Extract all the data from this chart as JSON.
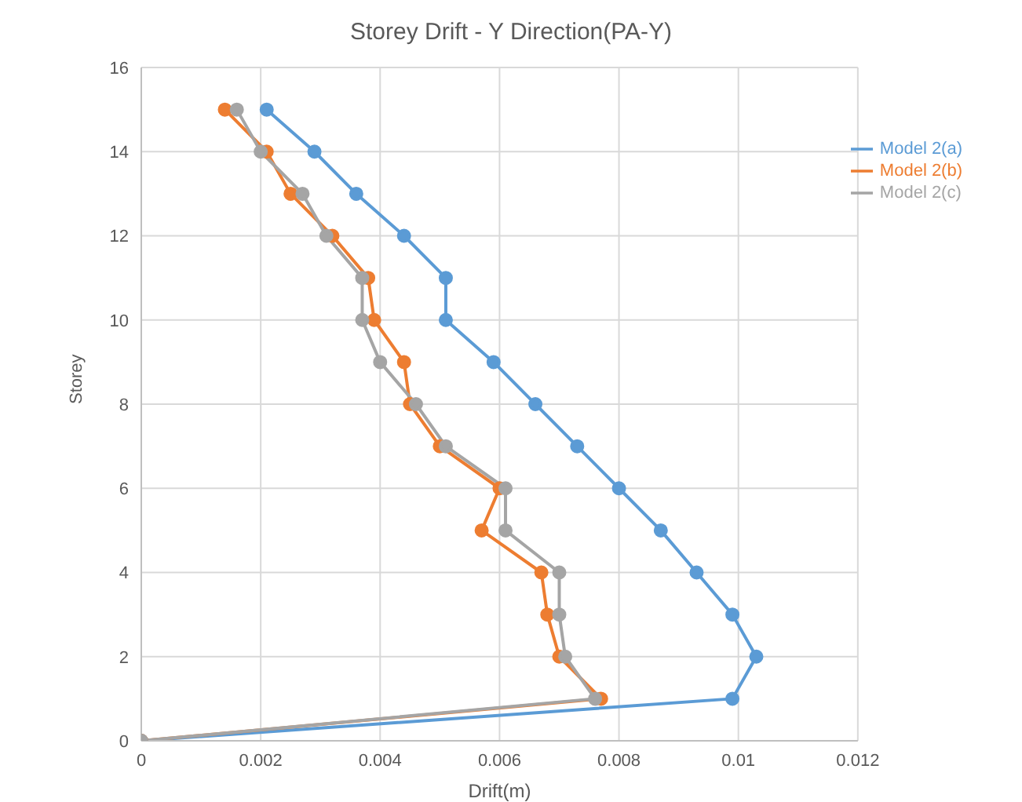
{
  "chart_data": {
    "type": "line",
    "title": "Storey Drift - Y Direction(PA-Y)",
    "xlabel": "Drift(m)",
    "ylabel": "Storey",
    "xlim": [
      0,
      0.012
    ],
    "xticks": [
      0,
      0.002,
      0.004,
      0.006,
      0.008,
      0.01,
      0.012
    ],
    "ylim": [
      0,
      16
    ],
    "yticks": [
      0,
      2,
      4,
      6,
      8,
      10,
      12,
      14,
      16
    ],
    "grid": true,
    "legend": "top right",
    "marker": "circle",
    "line_style": "solid",
    "series": [
      {
        "name": "Model 2(a)",
        "color": "#5b9bd5",
        "x": [
          0,
          0.0099,
          0.0103,
          0.0099,
          0.0093,
          0.0087,
          0.008,
          0.0073,
          0.0066,
          0.0059,
          0.0051,
          0.0051,
          0.0044,
          0.0036,
          0.0029,
          0.0021
        ],
        "values": [
          0,
          1,
          2,
          3,
          4,
          5,
          6,
          7,
          8,
          9,
          10,
          11,
          12,
          13,
          14,
          15
        ]
      },
      {
        "name": "Model 2(b)",
        "color": "#ed7d31",
        "x": [
          0,
          0.0077,
          0.007,
          0.0068,
          0.0067,
          0.0057,
          0.006,
          0.005,
          0.0045,
          0.0044,
          0.0039,
          0.0038,
          0.0032,
          0.0025,
          0.0021,
          0.0014
        ],
        "values": [
          0,
          1,
          2,
          3,
          4,
          5,
          6,
          7,
          8,
          9,
          10,
          11,
          12,
          13,
          14,
          15
        ]
      },
      {
        "name": "Model 2(c)",
        "color": "#a5a5a5",
        "x": [
          0,
          0.0076,
          0.0071,
          0.007,
          0.007,
          0.0061,
          0.0061,
          0.0051,
          0.0046,
          0.004,
          0.0037,
          0.0037,
          0.0031,
          0.0027,
          0.002,
          0.0016
        ],
        "values": [
          0,
          1,
          2,
          3,
          4,
          5,
          6,
          7,
          8,
          9,
          10,
          11,
          12,
          13,
          14,
          15
        ]
      }
    ]
  }
}
